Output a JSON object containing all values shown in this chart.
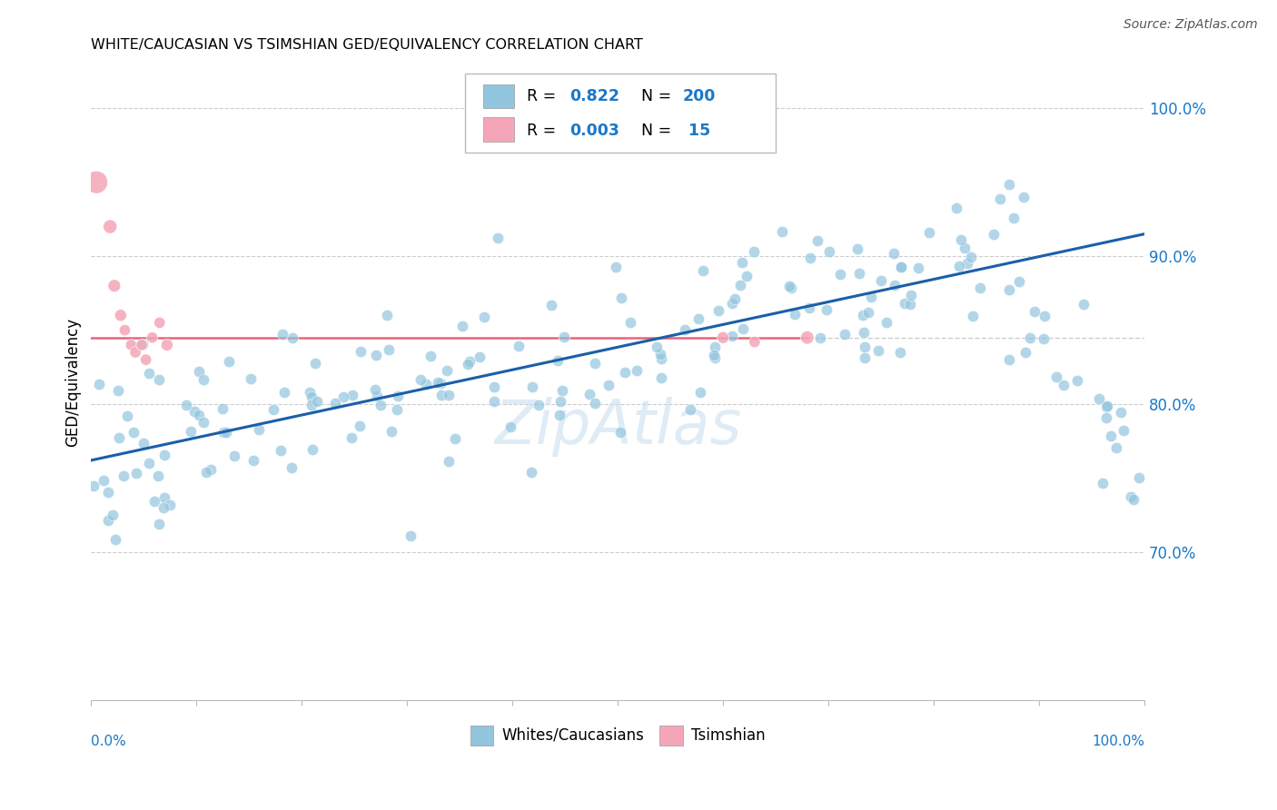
{
  "title": "WHITE/CAUCASIAN VS TSIMSHIAN GED/EQUIVALENCY CORRELATION CHART",
  "source": "Source: ZipAtlas.com",
  "ylabel": "GED/Equivalency",
  "ytick_labels": [
    "70.0%",
    "80.0%",
    "90.0%",
    "100.0%"
  ],
  "ytick_values": [
    0.7,
    0.8,
    0.9,
    1.0
  ],
  "blue_R": "0.822",
  "blue_N": "200",
  "pink_R": "0.003",
  "pink_N": "15",
  "blue_color": "#92c5de",
  "pink_color": "#f4a6b8",
  "trend_blue_color": "#1a5fa8",
  "trend_pink_color": "#e8637a",
  "grid_color": "#cccccc",
  "watermark_color": "#c5ddf0",
  "legend_labels": [
    "Whites/Caucasians",
    "Tsimshian"
  ],
  "blue_val_color": "#1a78c8",
  "blue_trend_start_y": 0.762,
  "blue_trend_end_y": 0.915,
  "pink_line_y": 0.845,
  "pink_line_end_x": 0.68,
  "xlim": [
    0.0,
    1.0
  ],
  "ylim": [
    0.6,
    1.03
  ]
}
